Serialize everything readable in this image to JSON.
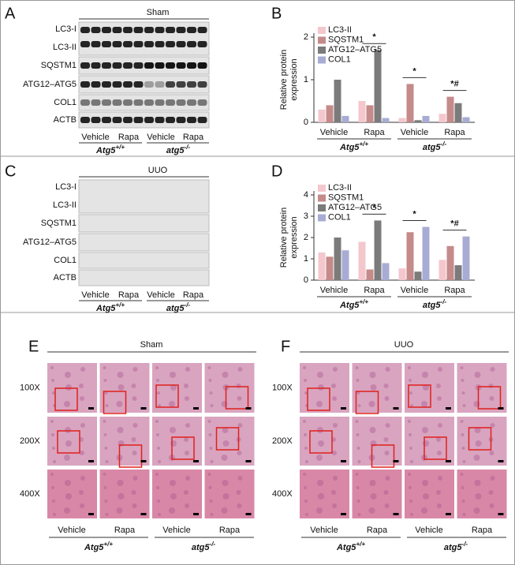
{
  "panels": [
    {
      "letter": "A",
      "title": "Sham",
      "rows": [
        "LC3-I",
        "LC3-II",
        "SQSTM1",
        "ATG12–ATG5",
        "COL1",
        "ACTB"
      ],
      "groups": [
        "Vehicle",
        "Rapa",
        "Vehicle",
        "Rapa"
      ],
      "genotypes": [
        {
          "name": "Atg5",
          "sup": "+/+"
        },
        {
          "name": "atg5",
          "sup": "-/-"
        }
      ]
    },
    {
      "letter": "C",
      "title": "UUO",
      "rows": [
        "LC3-I",
        "LC3-II",
        "SQSTM1",
        "ATG12–ATG5",
        "COL1",
        "ACTB"
      ],
      "groups": [
        "Vehicle",
        "Rapa",
        "Vehicle",
        "Rapa"
      ],
      "genotypes": [
        {
          "name": "Atg5",
          "sup": "+/+"
        },
        {
          "name": "atg5",
          "sup": "-/-"
        }
      ]
    }
  ],
  "chart_data": [
    {
      "type": "bar",
      "panel_label": "B",
      "ylabel": [
        "Relative protein",
        "expression"
      ],
      "categories": [
        "Vehicle",
        "Rapa",
        "Vehicle",
        "Rapa"
      ],
      "genotypes": [
        {
          "name": "Atg5",
          "sup": "+/+"
        },
        {
          "name": "atg5",
          "sup": "-/-"
        }
      ],
      "ylim": [
        0,
        2
      ],
      "yticks": [
        0,
        1,
        2
      ],
      "series": [
        {
          "name": "LC3-II",
          "color": "#f4c7cd",
          "values": [
            0.3,
            0.5,
            0.1,
            0.2
          ]
        },
        {
          "name": "SQSTM1",
          "color": "#c58a8a",
          "values": [
            0.4,
            0.4,
            0.9,
            0.6
          ]
        },
        {
          "name": "ATG12–ATG5",
          "color": "#7b7b7b",
          "values": [
            1.0,
            1.7,
            0.05,
            0.45
          ]
        },
        {
          "name": "COL1",
          "color": "#a8acd4",
          "values": [
            0.15,
            0.1,
            0.15,
            0.12
          ]
        }
      ],
      "annotations": [
        "",
        "*",
        "*",
        "*#"
      ]
    },
    {
      "type": "bar",
      "panel_label": "D",
      "ylabel": [
        "Relative protein",
        "expression"
      ],
      "categories": [
        "Vehicle",
        "Rapa",
        "Vehicle",
        "Rapa"
      ],
      "genotypes": [
        {
          "name": "Atg5",
          "sup": "+/+"
        },
        {
          "name": "atg5",
          "sup": "-/-"
        }
      ],
      "ylim": [
        0,
        4
      ],
      "yticks": [
        0,
        1,
        2,
        3,
        4
      ],
      "series": [
        {
          "name": "LC3-II",
          "color": "#f4c7cd",
          "values": [
            1.3,
            1.8,
            0.55,
            0.95
          ]
        },
        {
          "name": "SQSTM1",
          "color": "#c58a8a",
          "values": [
            1.1,
            0.5,
            2.25,
            1.6
          ]
        },
        {
          "name": "ATG12–ATG5",
          "color": "#7b7b7b",
          "values": [
            2.0,
            2.8,
            0.4,
            0.7
          ]
        },
        {
          "name": "COL1",
          "color": "#a8acd4",
          "values": [
            1.4,
            0.8,
            2.5,
            2.05
          ]
        }
      ],
      "annotations": [
        "",
        "*",
        "*",
        "*#"
      ]
    }
  ],
  "histology": [
    {
      "letter": "E",
      "title": "Sham",
      "magnifications": [
        "100X",
        "200X",
        "400X"
      ],
      "groups": [
        "Vehicle",
        "Rapa",
        "Vehicle",
        "Rapa"
      ],
      "genotypes": [
        {
          "name": "Atg5",
          "sup": "+/+"
        },
        {
          "name": "atg5",
          "sup": "-/-"
        }
      ]
    },
    {
      "letter": "F",
      "title": "UUO",
      "magnifications": [
        "100X",
        "200X",
        "400X"
      ],
      "groups": [
        "Vehicle",
        "Rapa",
        "Vehicle",
        "Rapa"
      ],
      "genotypes": [
        {
          "name": "Atg5",
          "sup": "+/+"
        },
        {
          "name": "atg5",
          "sup": "-/-"
        }
      ]
    }
  ]
}
